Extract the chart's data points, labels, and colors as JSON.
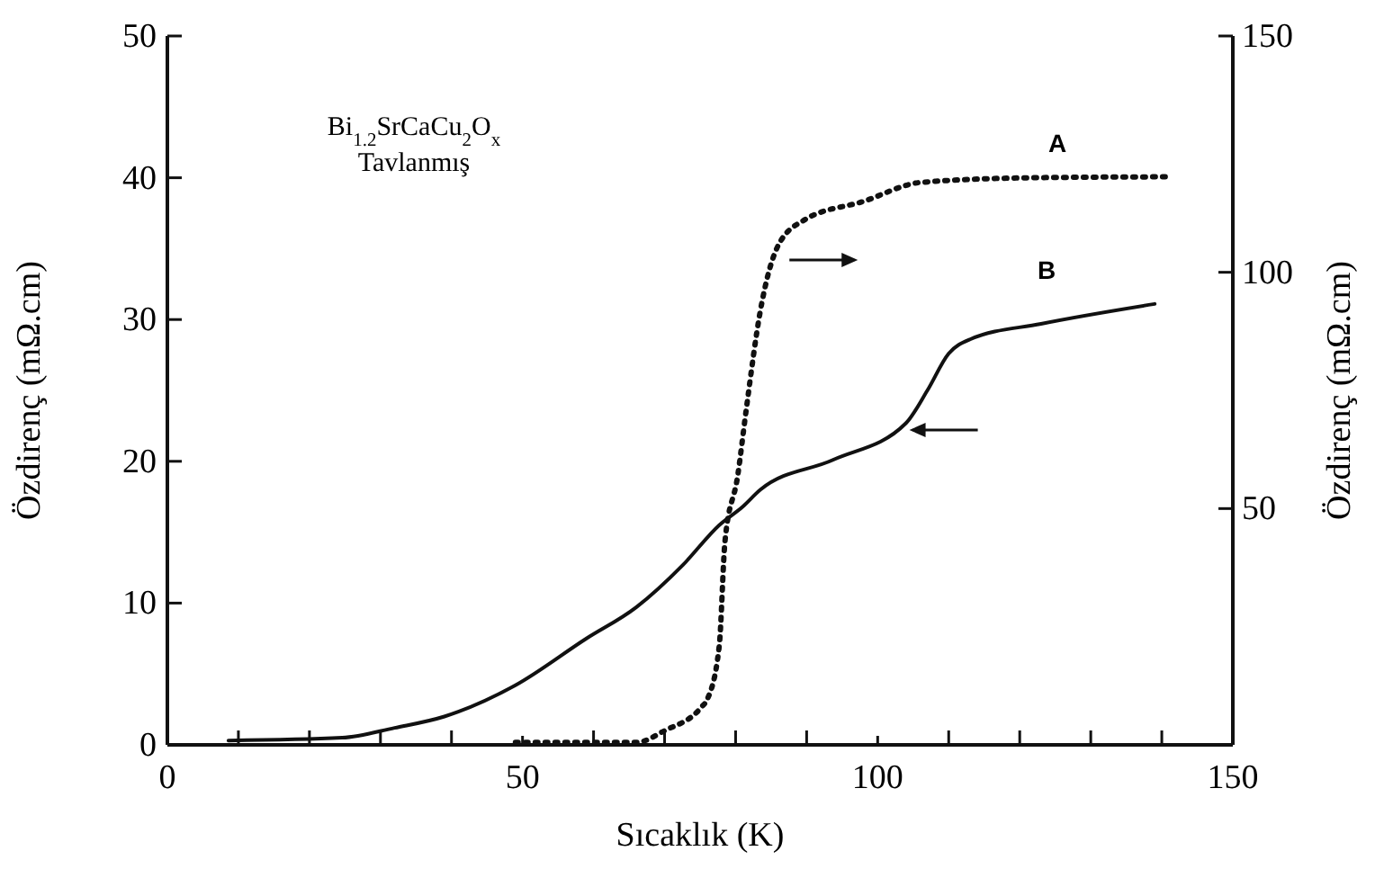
{
  "chart_data": {
    "type": "line",
    "xlabel": "Sıcaklık (K)",
    "ylabel": "Özdirenç (mΩ.cm)",
    "y2label": "Özdirenç (mΩ.cm)",
    "annotations": [
      "Bi$_{1.2}$SrCaCu$_{2}$O$_{x}$",
      "Tavlanmış"
    ],
    "xlim": [
      0,
      150
    ],
    "xticks": [
      0,
      {
        "value": 10,
        "label": null
      },
      {
        "value": 20,
        "label": null
      },
      {
        "value": 30,
        "label": null
      },
      {
        "value": 40,
        "label": null
      },
      50,
      {
        "value": 60,
        "label": null
      },
      {
        "value": 70,
        "label": null
      },
      {
        "value": 80,
        "label": null
      },
      {
        "value": 90,
        "label": null
      },
      100,
      {
        "value": 110,
        "label": null
      },
      {
        "value": 120,
        "label": null
      },
      {
        "value": 130,
        "label": null
      },
      {
        "value": 140,
        "label": null
      },
      150
    ],
    "ylim": [
      0,
      50
    ],
    "yticks": [
      0,
      10,
      20,
      30,
      40,
      50
    ],
    "y2lim": [
      0,
      150
    ],
    "y2ticks": [
      {
        "value": 0,
        "label": null
      },
      50,
      100,
      150
    ],
    "grid": false,
    "series": [
      {
        "name": "A",
        "color": "#111111",
        "axis": "y2",
        "line_style": "dotted",
        "x": [
          49,
          58,
          66,
          70,
          75.2,
          76,
          77.7,
          78.5,
          80.3,
          81.5,
          83.5,
          86,
          89.6,
          98,
          106,
          121.5,
          140.5
        ],
        "values": [
          0.5,
          0.5,
          0.5,
          3,
          8,
          9.6,
          21,
          43,
          57,
          71,
          92,
          105.7,
          111,
          115,
          119,
          120,
          120.2
        ]
      },
      {
        "name": "B",
        "color": "#111111",
        "axis": "y",
        "line_style": "solid",
        "x": [
          8.6,
          24.6,
          32,
          39,
          49,
          59,
          66,
          72.6,
          77.7,
          81,
          83.5,
          93.7,
          104,
          107,
          110,
          113,
          123,
          139
        ],
        "values": [
          0.3,
          0.5,
          1.2,
          2,
          4.2,
          7.5,
          9.7,
          12.7,
          15.5,
          16.8,
          18,
          20.1,
          22.7,
          25,
          27.6,
          28.6,
          29.7,
          31.1
        ]
      }
    ]
  }
}
